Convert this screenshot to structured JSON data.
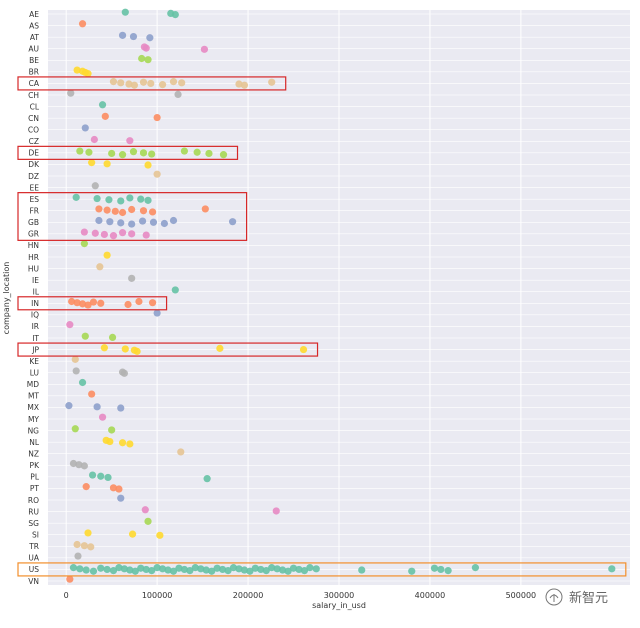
{
  "chart_data": {
    "type": "scatter",
    "title": "",
    "xlabel": "salary_in_usd",
    "ylabel": "company_location",
    "xlim": [
      -20000,
      620000
    ],
    "x_ticks": [
      0,
      100000,
      200000,
      300000,
      400000,
      500000
    ],
    "x_tick_labels": [
      "0",
      "100000",
      "200000",
      "300000",
      "400000",
      "500000"
    ],
    "grid": true,
    "categories": [
      "AE",
      "AS",
      "AT",
      "AU",
      "BE",
      "BR",
      "CA",
      "CH",
      "CL",
      "CN",
      "CO",
      "CZ",
      "DE",
      "DK",
      "DZ",
      "EE",
      "ES",
      "FR",
      "GB",
      "GR",
      "HN",
      "HR",
      "HU",
      "IE",
      "IL",
      "IN",
      "IQ",
      "IR",
      "IT",
      "JP",
      "KE",
      "LU",
      "MD",
      "MT",
      "MX",
      "MY",
      "NG",
      "NL",
      "NZ",
      "PK",
      "PL",
      "PT",
      "RO",
      "RU",
      "SG",
      "SI",
      "TR",
      "UA",
      "US",
      "VN"
    ],
    "palette": [
      "#66c2a5",
      "#fc8d62",
      "#8da0cb",
      "#e78ac3",
      "#a6d854",
      "#ffd92f",
      "#e5c494",
      "#b3b3b3"
    ],
    "highlight_color_red": "#d62728",
    "highlight_color_orange": "#f28e2b",
    "highlights": [
      {
        "category": "CA",
        "color": "red"
      },
      {
        "category": "DE",
        "color": "red"
      },
      {
        "category": [
          "ES",
          "GR"
        ],
        "color": "red"
      },
      {
        "category": "IN",
        "color": "red"
      },
      {
        "category": "JP",
        "color": "red"
      },
      {
        "category": "US",
        "color": "orange"
      }
    ],
    "points": {
      "AE": [
        65000,
        115000,
        120000
      ],
      "AS": [
        18000
      ],
      "AT": [
        62000,
        74000,
        92000
      ],
      "AU": [
        86000,
        88000,
        152000
      ],
      "BE": [
        83000,
        90000
      ],
      "BR": [
        12000,
        18000,
        21000,
        24000
      ],
      "CA": [
        52000,
        60000,
        69000,
        75000,
        85000,
        93000,
        106000,
        118000,
        127000,
        190000,
        196000,
        226000
      ],
      "CH": [
        5000,
        123000
      ],
      "CL": [
        40000
      ],
      "CN": [
        43000,
        100000
      ],
      "CO": [
        21000
      ],
      "CZ": [
        31000,
        70000
      ],
      "DE": [
        15000,
        25000,
        50000,
        62000,
        74000,
        85000,
        94000,
        130000,
        144000,
        157000,
        173000
      ],
      "DK": [
        28000,
        45000,
        90000
      ],
      "DZ": [
        100000
      ],
      "EE": [
        32000
      ],
      "ES": [
        11000,
        34000,
        47000,
        60000,
        70000,
        82000,
        90000
      ],
      "FR": [
        36000,
        45000,
        54000,
        62000,
        72000,
        85000,
        95000,
        153000
      ],
      "GB": [
        36000,
        48000,
        60000,
        72000,
        84000,
        96000,
        108000,
        118000,
        183000
      ],
      "GR": [
        20000,
        32000,
        42000,
        52000,
        62000,
        72000,
        88000
      ],
      "HN": [
        20000
      ],
      "HR": [
        45000
      ],
      "HU": [
        37000
      ],
      "IE": [
        72000
      ],
      "IL": [
        120000
      ],
      "IN": [
        6000,
        12000,
        18000,
        24000,
        30000,
        38000,
        68000,
        80000,
        95000
      ],
      "IQ": [
        100000
      ],
      "IR": [
        4000
      ],
      "IT": [
        21000,
        51000
      ],
      "JP": [
        42000,
        65000,
        75000,
        78000,
        169000,
        261000
      ],
      "KE": [
        10000
      ],
      "LU": [
        11000,
        62000,
        64000
      ],
      "MD": [
        18000
      ],
      "MT": [
        28000
      ],
      "MX": [
        3000,
        34000,
        60000
      ],
      "MY": [
        40000
      ],
      "NG": [
        10000,
        50000
      ],
      "NL": [
        44000,
        48000,
        62000,
        70000
      ],
      "NZ": [
        126000
      ],
      "PK": [
        8000,
        14000,
        20000
      ],
      "PL": [
        29000,
        38000,
        46000,
        155000
      ],
      "PT": [
        22000,
        52000,
        58000
      ],
      "RO": [
        60000
      ],
      "RU": [
        87000,
        231000
      ],
      "SG": [
        90000
      ],
      "SI": [
        24000,
        73000,
        103000
      ],
      "TR": [
        12000,
        20000,
        27000
      ],
      "UA": [
        13000
      ],
      "US": [
        8000,
        15000,
        22000,
        30000,
        38000,
        45000,
        52000,
        58000,
        64000,
        70000,
        76000,
        82000,
        88000,
        94000,
        100000,
        106000,
        112000,
        118000,
        124000,
        130000,
        136000,
        142000,
        148000,
        154000,
        160000,
        166000,
        172000,
        178000,
        184000,
        190000,
        196000,
        202000,
        208000,
        214000,
        220000,
        226000,
        232000,
        238000,
        244000,
        250000,
        256000,
        262000,
        268000,
        275000,
        325000,
        380000,
        405000,
        412000,
        420000,
        450000,
        600000
      ],
      "VN": [
        4000
      ]
    }
  },
  "watermark": {
    "text": "新智元"
  }
}
